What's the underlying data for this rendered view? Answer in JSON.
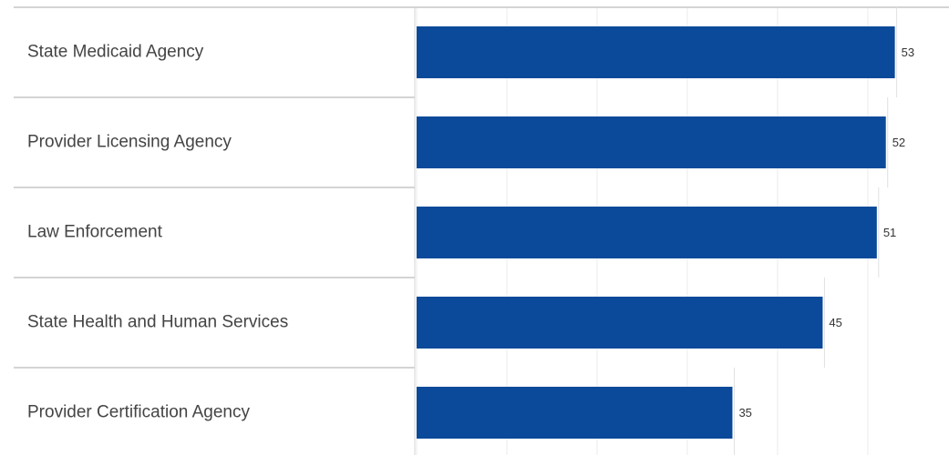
{
  "chart_data": {
    "type": "barh",
    "categories": [
      "State Medicaid Agency",
      "Provider Licensing Agency",
      "Law Enforcement",
      "State Health and Human Services",
      "Provider Certification Agency"
    ],
    "values": [
      53,
      52,
      51,
      45,
      35
    ],
    "color": "#0b4a9a",
    "xlim": [
      0,
      59
    ],
    "xticks": [
      0,
      10,
      20,
      30,
      40,
      50
    ],
    "grid": true
  }
}
